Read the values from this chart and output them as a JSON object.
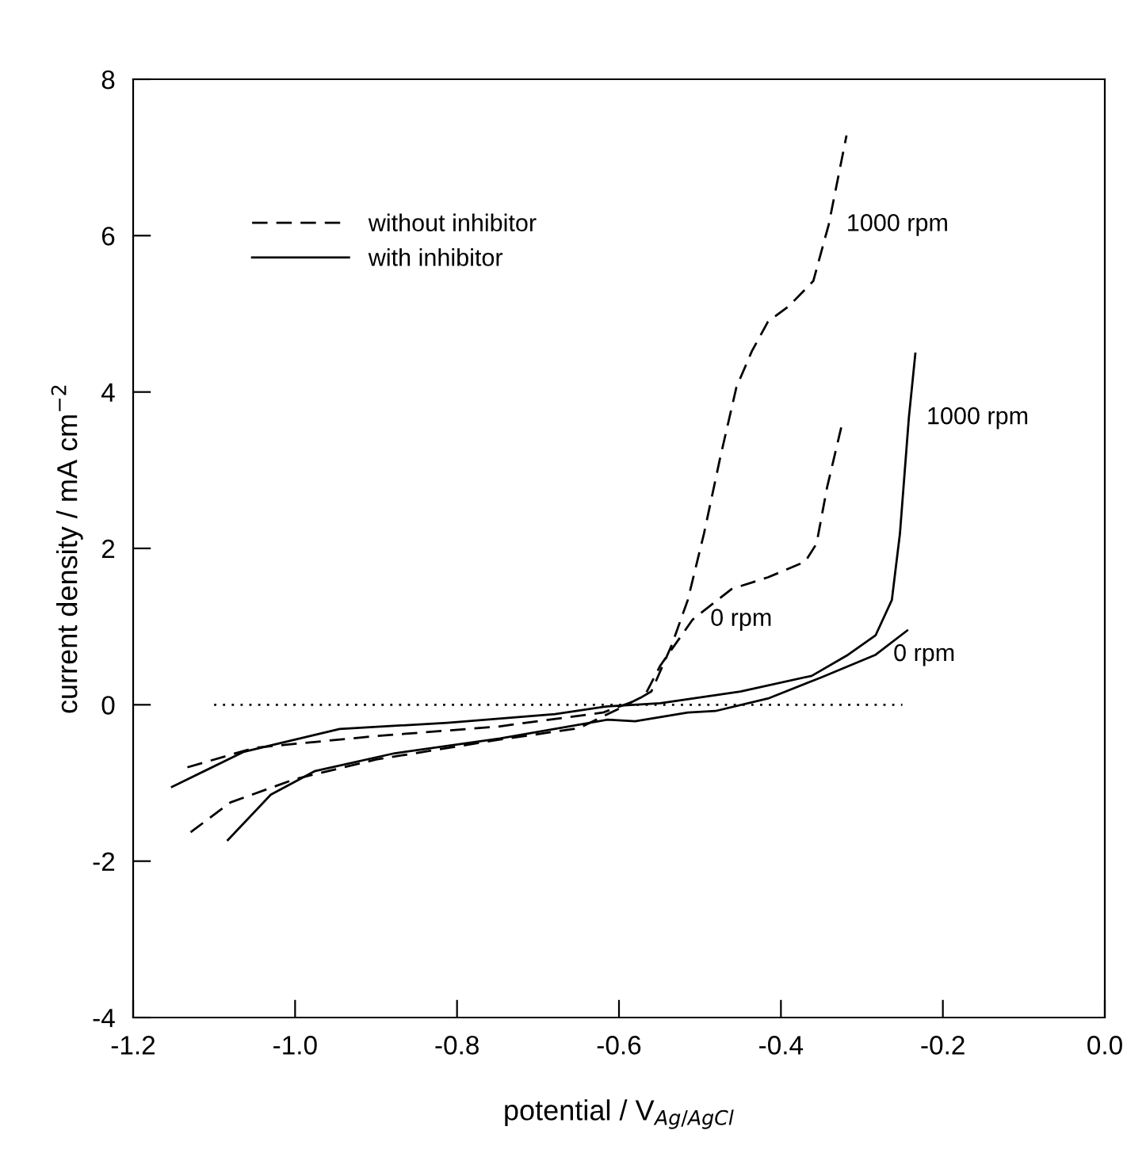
{
  "chart_data": {
    "type": "line",
    "xlabel": "potential / V$_{Ag/AgCl}$",
    "ylabel": "current density / mA cm$^{−2}$",
    "xlim": [
      -1.2,
      0.0
    ],
    "xticks": [
      {
        "value": -1.2,
        "label": "-1.2"
      },
      {
        "value": -1.0,
        "label": "-1.0"
      },
      {
        "value": -0.8,
        "label": "-0.8"
      },
      {
        "value": -0.6,
        "label": "-0.6"
      },
      {
        "value": -0.4,
        "label": "-0.4"
      },
      {
        "value": -0.2,
        "label": "-0.2"
      },
      {
        "value": 0.0,
        "label": "0.0"
      }
    ],
    "ylim": [
      -4,
      8
    ],
    "yticks": [
      -4,
      -2,
      0,
      2,
      4,
      6,
      8
    ],
    "grid": false,
    "legend": "top left",
    "marker": "none",
    "series": [
      {
        "name": "without inhibitor",
        "color": "#000000",
        "line_style": "dashed",
        "x": [
          -1.133,
          -1.05,
          -0.9,
          -0.75,
          -0.62,
          -0.58,
          -0.56,
          -0.535,
          -0.515,
          -0.495,
          -0.475,
          -0.455,
          -0.436,
          -0.416,
          -0.39,
          -0.36,
          -0.341,
          -0.319
        ],
        "values": [
          -0.8,
          -0.55,
          -0.4,
          -0.28,
          -0.1,
          0.05,
          0.17,
          0.76,
          1.34,
          2.19,
          3.16,
          4.06,
          4.52,
          4.9,
          5.1,
          5.42,
          6.14,
          7.28
        ]
      },
      {
        "color": "#000000",
        "line_style": "dashed",
        "x": [
          -1.129,
          -1.08,
          -1.0,
          -0.9,
          -0.75,
          -0.65,
          -0.6,
          -0.568,
          -0.549,
          -0.509,
          -0.461,
          -0.416,
          -0.37,
          -0.356,
          -0.343,
          -0.325
        ],
        "values": [
          -1.63,
          -1.25,
          -0.95,
          -0.7,
          -0.45,
          -0.3,
          -0.05,
          0.12,
          0.5,
          1.09,
          1.48,
          1.63,
          1.83,
          2.06,
          2.78,
          3.57
        ]
      },
      {
        "name": "with inhibitor",
        "color": "#000000",
        "line_style": "solid",
        "x": [
          -1.152,
          -1.063,
          -0.945,
          -0.812,
          -0.679,
          -0.614,
          -0.549,
          -0.45,
          -0.362,
          -0.317,
          -0.283,
          -0.263,
          -0.253,
          -0.242,
          -0.234
        ],
        "values": [
          -1.05,
          -0.6,
          -0.31,
          -0.23,
          -0.12,
          -0.02,
          0.02,
          0.17,
          0.37,
          0.64,
          0.89,
          1.34,
          2.19,
          3.67,
          4.49
        ]
      },
      {
        "color": "#000000",
        "line_style": "solid",
        "x": [
          -1.083,
          -1.03,
          -0.976,
          -0.877,
          -0.747,
          -0.614,
          -0.58,
          -0.515,
          -0.481,
          -0.416,
          -0.35,
          -0.283,
          -0.244
        ],
        "values": [
          -1.73,
          -1.15,
          -0.85,
          -0.62,
          -0.43,
          -0.19,
          -0.21,
          -0.1,
          -0.08,
          0.08,
          0.35,
          0.64,
          0.95
        ]
      },
      {
        "color": "#000000",
        "line_style": "dotted",
        "x": [
          -1.1,
          -0.25
        ],
        "values": [
          0,
          0
        ]
      }
    ],
    "annotations": [
      {
        "text": "1000 rpm",
        "x": -0.341,
        "y": 6.14
      },
      {
        "text": "1000 rpm",
        "x": -0.242,
        "y": 3.67
      },
      {
        "text": "0 rpm",
        "x": -0.509,
        "y": 1.09
      },
      {
        "text": "0 rpm",
        "x": -0.283,
        "y": 0.64
      }
    ]
  }
}
